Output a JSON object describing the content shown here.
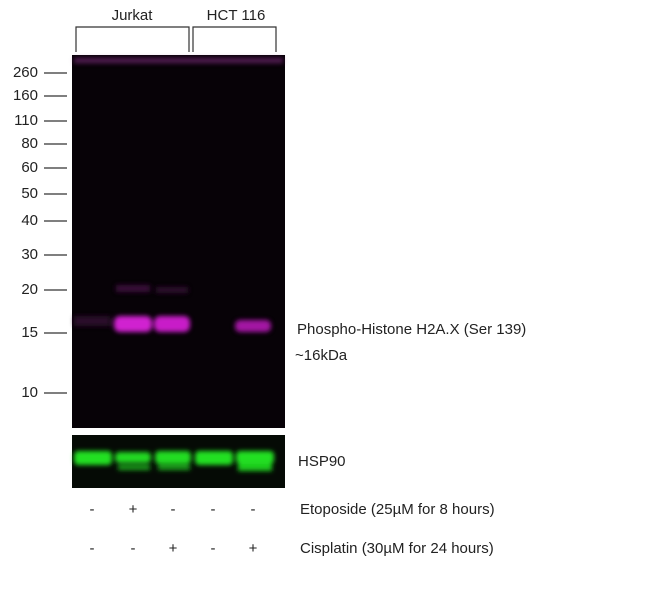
{
  "groups": [
    {
      "label": "Jurkat"
    },
    {
      "label": "HCT 116"
    }
  ],
  "markers": [
    "260",
    "160",
    "110",
    "80",
    "60",
    "50",
    "40",
    "30",
    "20",
    "15",
    "10"
  ],
  "band_labels": [
    "Phospho-Histone H2A.X (Ser 139)",
    "~16kDa"
  ],
  "loading_control": "HSP90",
  "treatments": [
    {
      "label": "Etoposide (25µM for 8 hours)",
      "lanes": [
        "-",
        "+",
        "-",
        "-",
        "-"
      ]
    },
    {
      "label": "Cisplatin (30µM for 24 hours)",
      "lanes": [
        "-",
        "-",
        "+",
        "-",
        "+"
      ]
    }
  ]
}
